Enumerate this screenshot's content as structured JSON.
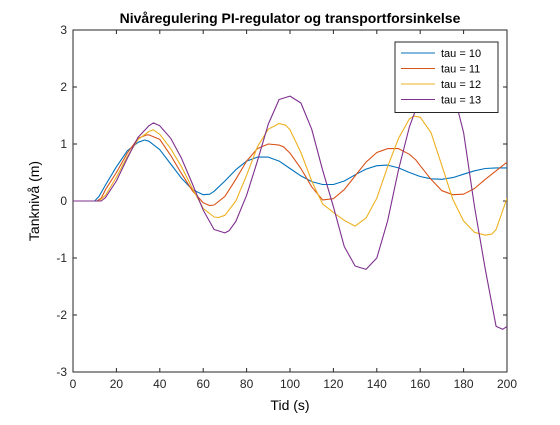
{
  "chart_data": {
    "type": "line",
    "title": "Nivåregulering PI-regulator og transportforsinkelse",
    "xlabel": "Tid (s)",
    "ylabel": "Tanknivå (m)",
    "xlim": [
      0,
      200
    ],
    "ylim": [
      -3,
      3
    ],
    "xticks": [
      0,
      20,
      40,
      60,
      80,
      100,
      120,
      140,
      160,
      180,
      200
    ],
    "yticks": [
      -3,
      -2,
      -1,
      0,
      1,
      2,
      3
    ],
    "grid": false,
    "legend_position": "top-right",
    "series": [
      {
        "name": "tau = 10",
        "color": "#0072BD",
        "x": [
          0,
          10,
          12,
          15,
          20,
          25,
          30,
          33,
          35,
          40,
          45,
          50,
          55,
          60,
          63,
          65,
          70,
          75,
          80,
          85,
          90,
          95,
          100,
          105,
          110,
          115,
          120,
          125,
          130,
          135,
          140,
          145,
          150,
          155,
          160,
          165,
          170,
          175,
          180,
          185,
          190,
          195,
          200
        ],
        "y": [
          0,
          0,
          0.08,
          0.28,
          0.6,
          0.88,
          1.03,
          1.07,
          1.05,
          0.9,
          0.65,
          0.4,
          0.2,
          0.11,
          0.12,
          0.17,
          0.35,
          0.55,
          0.7,
          0.77,
          0.77,
          0.7,
          0.57,
          0.44,
          0.34,
          0.29,
          0.29,
          0.35,
          0.46,
          0.56,
          0.62,
          0.63,
          0.58,
          0.5,
          0.43,
          0.39,
          0.38,
          0.41,
          0.47,
          0.53,
          0.57,
          0.58,
          0.58
        ]
      },
      {
        "name": "tau = 11",
        "color": "#D95319",
        "x": [
          0,
          11,
          13,
          15,
          20,
          25,
          30,
          34,
          35,
          40,
          45,
          50,
          55,
          60,
          63,
          65,
          70,
          75,
          80,
          85,
          90,
          95,
          97,
          100,
          105,
          110,
          115,
          120,
          125,
          130,
          135,
          140,
          145,
          150,
          155,
          158,
          160,
          165,
          170,
          175,
          180,
          185,
          190,
          195,
          200
        ],
        "y": [
          0,
          0,
          0.05,
          0.2,
          0.5,
          0.84,
          1.1,
          1.16,
          1.16,
          1.08,
          0.8,
          0.48,
          0.18,
          -0.03,
          -0.08,
          -0.07,
          0.08,
          0.38,
          0.7,
          0.92,
          1.0,
          0.98,
          0.95,
          0.84,
          0.57,
          0.25,
          0.02,
          0.04,
          0.2,
          0.44,
          0.68,
          0.85,
          0.92,
          0.92,
          0.82,
          0.72,
          0.62,
          0.38,
          0.18,
          0.11,
          0.12,
          0.22,
          0.38,
          0.53,
          0.68
        ]
      },
      {
        "name": "tau = 12",
        "color": "#EDB120",
        "x": [
          0,
          12,
          15,
          20,
          25,
          30,
          35,
          37,
          40,
          45,
          50,
          55,
          60,
          65,
          67,
          70,
          75,
          80,
          85,
          90,
          95,
          98,
          100,
          105,
          110,
          115,
          120,
          125,
          130,
          135,
          140,
          145,
          150,
          155,
          157,
          160,
          165,
          170,
          175,
          180,
          185,
          190,
          193,
          195,
          200
        ],
        "y": [
          0,
          0,
          0.1,
          0.42,
          0.78,
          1.08,
          1.22,
          1.25,
          1.17,
          0.92,
          0.6,
          0.22,
          -0.13,
          -0.28,
          -0.29,
          -0.25,
          0.0,
          0.45,
          0.95,
          1.26,
          1.36,
          1.33,
          1.25,
          0.85,
          0.35,
          -0.05,
          -0.2,
          -0.34,
          -0.44,
          -0.3,
          0.05,
          0.6,
          1.1,
          1.44,
          1.49,
          1.47,
          1.2,
          0.62,
          0.03,
          -0.35,
          -0.55,
          -0.6,
          -0.58,
          -0.5,
          0.05
        ]
      },
      {
        "name": "tau = 13",
        "color": "#7E2F8E",
        "x": [
          0,
          13,
          15,
          20,
          25,
          30,
          35,
          37,
          40,
          45,
          50,
          55,
          60,
          65,
          70,
          72,
          75,
          80,
          85,
          90,
          95,
          100,
          105,
          110,
          115,
          120,
          125,
          130,
          135,
          140,
          145,
          150,
          155,
          160,
          165,
          170,
          175,
          180,
          185,
          190,
          195,
          198,
          200
        ],
        "y": [
          0,
          0,
          0.06,
          0.35,
          0.75,
          1.12,
          1.32,
          1.37,
          1.32,
          1.1,
          0.75,
          0.3,
          -0.16,
          -0.5,
          -0.56,
          -0.52,
          -0.36,
          0.1,
          0.7,
          1.35,
          1.78,
          1.84,
          1.72,
          1.26,
          0.55,
          -0.1,
          -0.8,
          -1.14,
          -1.2,
          -1.0,
          -0.35,
          0.55,
          1.3,
          1.82,
          2.1,
          2.15,
          1.95,
          1.2,
          -0.1,
          -1.2,
          -2.2,
          -2.25,
          -2.2
        ]
      }
    ]
  }
}
